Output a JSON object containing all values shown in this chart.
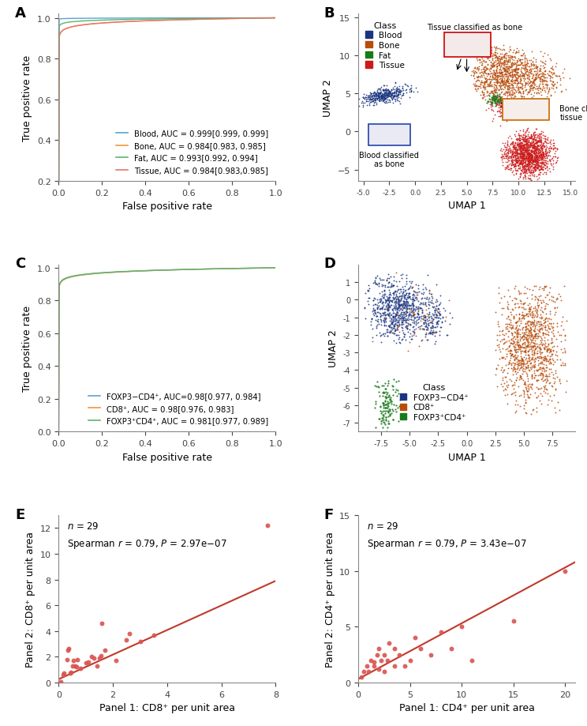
{
  "panel_A": {
    "title": "A",
    "xlabel": "False positive rate",
    "ylabel": "True positive rate",
    "xlim": [
      0,
      1.0
    ],
    "ylim": [
      0.2,
      1.02
    ],
    "yticks": [
      0.2,
      0.4,
      0.6,
      0.8,
      1.0
    ],
    "xticks": [
      0.0,
      0.2,
      0.4,
      0.6,
      0.8,
      1.0
    ],
    "curves": [
      {
        "label": "Blood, AUC = 0.999[0.999, 0.999]",
        "color": "#5ba3d0",
        "k": 0.001
      },
      {
        "label": "Bone, AUC = 0.984[0.983, 0.985]",
        "color": "#f0963a",
        "k": 0.016
      },
      {
        "label": "Fat, AUC = 0.993[0.992, 0.994]",
        "color": "#5ab56e",
        "k": 0.007
      },
      {
        "label": "Tissue, AUC = 0.984[0.983,0.985]",
        "color": "#e8756a",
        "k": 0.016
      }
    ]
  },
  "panel_C": {
    "title": "C",
    "xlabel": "False positive rate",
    "ylabel": "True positive rate",
    "xlim": [
      0,
      1.0
    ],
    "ylim": [
      0.0,
      1.02
    ],
    "yticks": [
      0.0,
      0.2,
      0.4,
      0.6,
      0.8,
      1.0
    ],
    "xticks": [
      0.0,
      0.2,
      0.4,
      0.6,
      0.8,
      1.0
    ],
    "curves": [
      {
        "label": "FOXP3−CD4⁺, AUC=0.98[0.977, 0.984]",
        "color": "#5ba3d0",
        "k": 0.02
      },
      {
        "label": "CD8⁺, AUC = 0.98[0.976, 0.983]",
        "color": "#f0963a",
        "k": 0.02
      },
      {
        "label": "FOXP3⁺CD4⁺, AUC = 0.981[0.977, 0.989]",
        "color": "#5ab56e",
        "k": 0.019
      }
    ]
  },
  "panel_B": {
    "title": "B",
    "xlabel": "UMAP 1",
    "ylabel": "UMAP 2",
    "xlim": [
      -5.5,
      15.5
    ],
    "ylim": [
      -6.5,
      15.5
    ],
    "xticks": [
      -5.0,
      -2.5,
      0.0,
      2.5,
      5.0,
      7.5,
      10.0,
      12.5,
      15.0
    ],
    "yticks": [
      -5,
      0,
      5,
      10,
      15
    ],
    "legend_title": "Class",
    "classes": [
      {
        "name": "Blood",
        "color": "#1a3580"
      },
      {
        "name": "Bone",
        "color": "#b84c0a"
      },
      {
        "name": "Fat",
        "color": "#1a7a1a"
      },
      {
        "name": "Tissue",
        "color": "#cc1a1a"
      }
    ],
    "annotation1_text": "Tissue classified as bone",
    "annotation2_text": "Blood classified\nas bone",
    "annotation3_text": "Bone classified as\ntissue"
  },
  "panel_D": {
    "title": "D",
    "xlabel": "UMAP 1",
    "ylabel": "UMAP 2",
    "xlim": [
      -9.5,
      9.5
    ],
    "ylim": [
      -7.5,
      2.0
    ],
    "xticks": [
      -7.5,
      -5.0,
      -2.5,
      0.0,
      2.5,
      5.0,
      7.5
    ],
    "yticks": [
      -7,
      -6,
      -5,
      -4,
      -3,
      -2,
      -1,
      0,
      1
    ],
    "legend_title": "Class",
    "classes": [
      {
        "name": "FOXP3−CD4⁺",
        "color": "#1a3580"
      },
      {
        "name": "CD8⁺",
        "color": "#b84c0a"
      },
      {
        "name": "FOXP3⁺CD4⁺",
        "color": "#1a7a1a"
      }
    ]
  },
  "panel_E": {
    "title": "E",
    "xlabel": "Panel 1: CD8⁺ per unit area",
    "ylabel": "Panel 2: CD8⁺ per unit area",
    "n": 29,
    "spearman_r": 0.79,
    "p_value": "2.97e−07",
    "xlim": [
      0,
      8
    ],
    "ylim": [
      0,
      13
    ],
    "xticks": [
      0,
      2,
      4,
      6,
      8
    ],
    "yticks": [
      0,
      2,
      4,
      6,
      8,
      10,
      12
    ],
    "scatter_color": "#d9534f",
    "line_color": "#c0392b",
    "x_data": [
      0.08,
      0.15,
      0.2,
      0.3,
      0.35,
      0.38,
      0.42,
      0.45,
      0.5,
      0.55,
      0.6,
      0.65,
      0.7,
      0.8,
      1.0,
      1.1,
      1.2,
      1.3,
      1.4,
      1.5,
      1.55,
      1.6,
      1.7,
      2.1,
      2.5,
      2.6,
      3.0,
      3.5,
      7.7
    ],
    "y_data": [
      0.05,
      0.6,
      0.7,
      1.8,
      2.5,
      2.6,
      0.7,
      0.8,
      1.3,
      1.7,
      1.3,
      1.2,
      1.8,
      1.1,
      1.5,
      1.6,
      2.0,
      1.9,
      1.3,
      1.9,
      2.1,
      4.6,
      2.5,
      1.7,
      3.3,
      3.8,
      3.2,
      3.7,
      12.2
    ],
    "line_x": [
      0,
      8
    ],
    "line_y": [
      0.25,
      7.9
    ]
  },
  "panel_F": {
    "title": "F",
    "xlabel": "Panel 1: CD4⁺ per unit area",
    "ylabel": "Panel 2: CD4⁺ per unit area",
    "n": 29,
    "spearman_r": 0.79,
    "p_value": "3.43e−07",
    "xlim": [
      0,
      21
    ],
    "ylim": [
      0,
      15
    ],
    "xticks": [
      0,
      5,
      10,
      15,
      20
    ],
    "yticks": [
      0,
      5,
      10,
      15
    ],
    "scatter_color": "#d9534f",
    "line_color": "#c0392b",
    "x_data": [
      0.3,
      0.5,
      0.8,
      1.0,
      1.2,
      1.5,
      1.5,
      1.8,
      2.0,
      2.0,
      2.2,
      2.5,
      2.5,
      2.8,
      3.0,
      3.5,
      3.5,
      4.0,
      4.5,
      5.0,
      5.5,
      6.0,
      7.0,
      8.0,
      9.0,
      10.0,
      11.0,
      15.0,
      20.0
    ],
    "y_data": [
      0.5,
      1.0,
      1.5,
      1.0,
      2.0,
      1.5,
      1.8,
      2.5,
      3.0,
      1.2,
      2.0,
      2.5,
      1.0,
      2.0,
      3.5,
      1.5,
      3.0,
      2.5,
      1.5,
      2.0,
      4.0,
      3.0,
      2.5,
      4.5,
      3.0,
      5.0,
      2.0,
      5.5,
      10.0
    ],
    "line_x": [
      0,
      21
    ],
    "line_y": [
      0.3,
      10.8
    ]
  },
  "background_color": "#ffffff",
  "label_fontsize": 9,
  "tick_fontsize": 8,
  "legend_fontsize": 8
}
